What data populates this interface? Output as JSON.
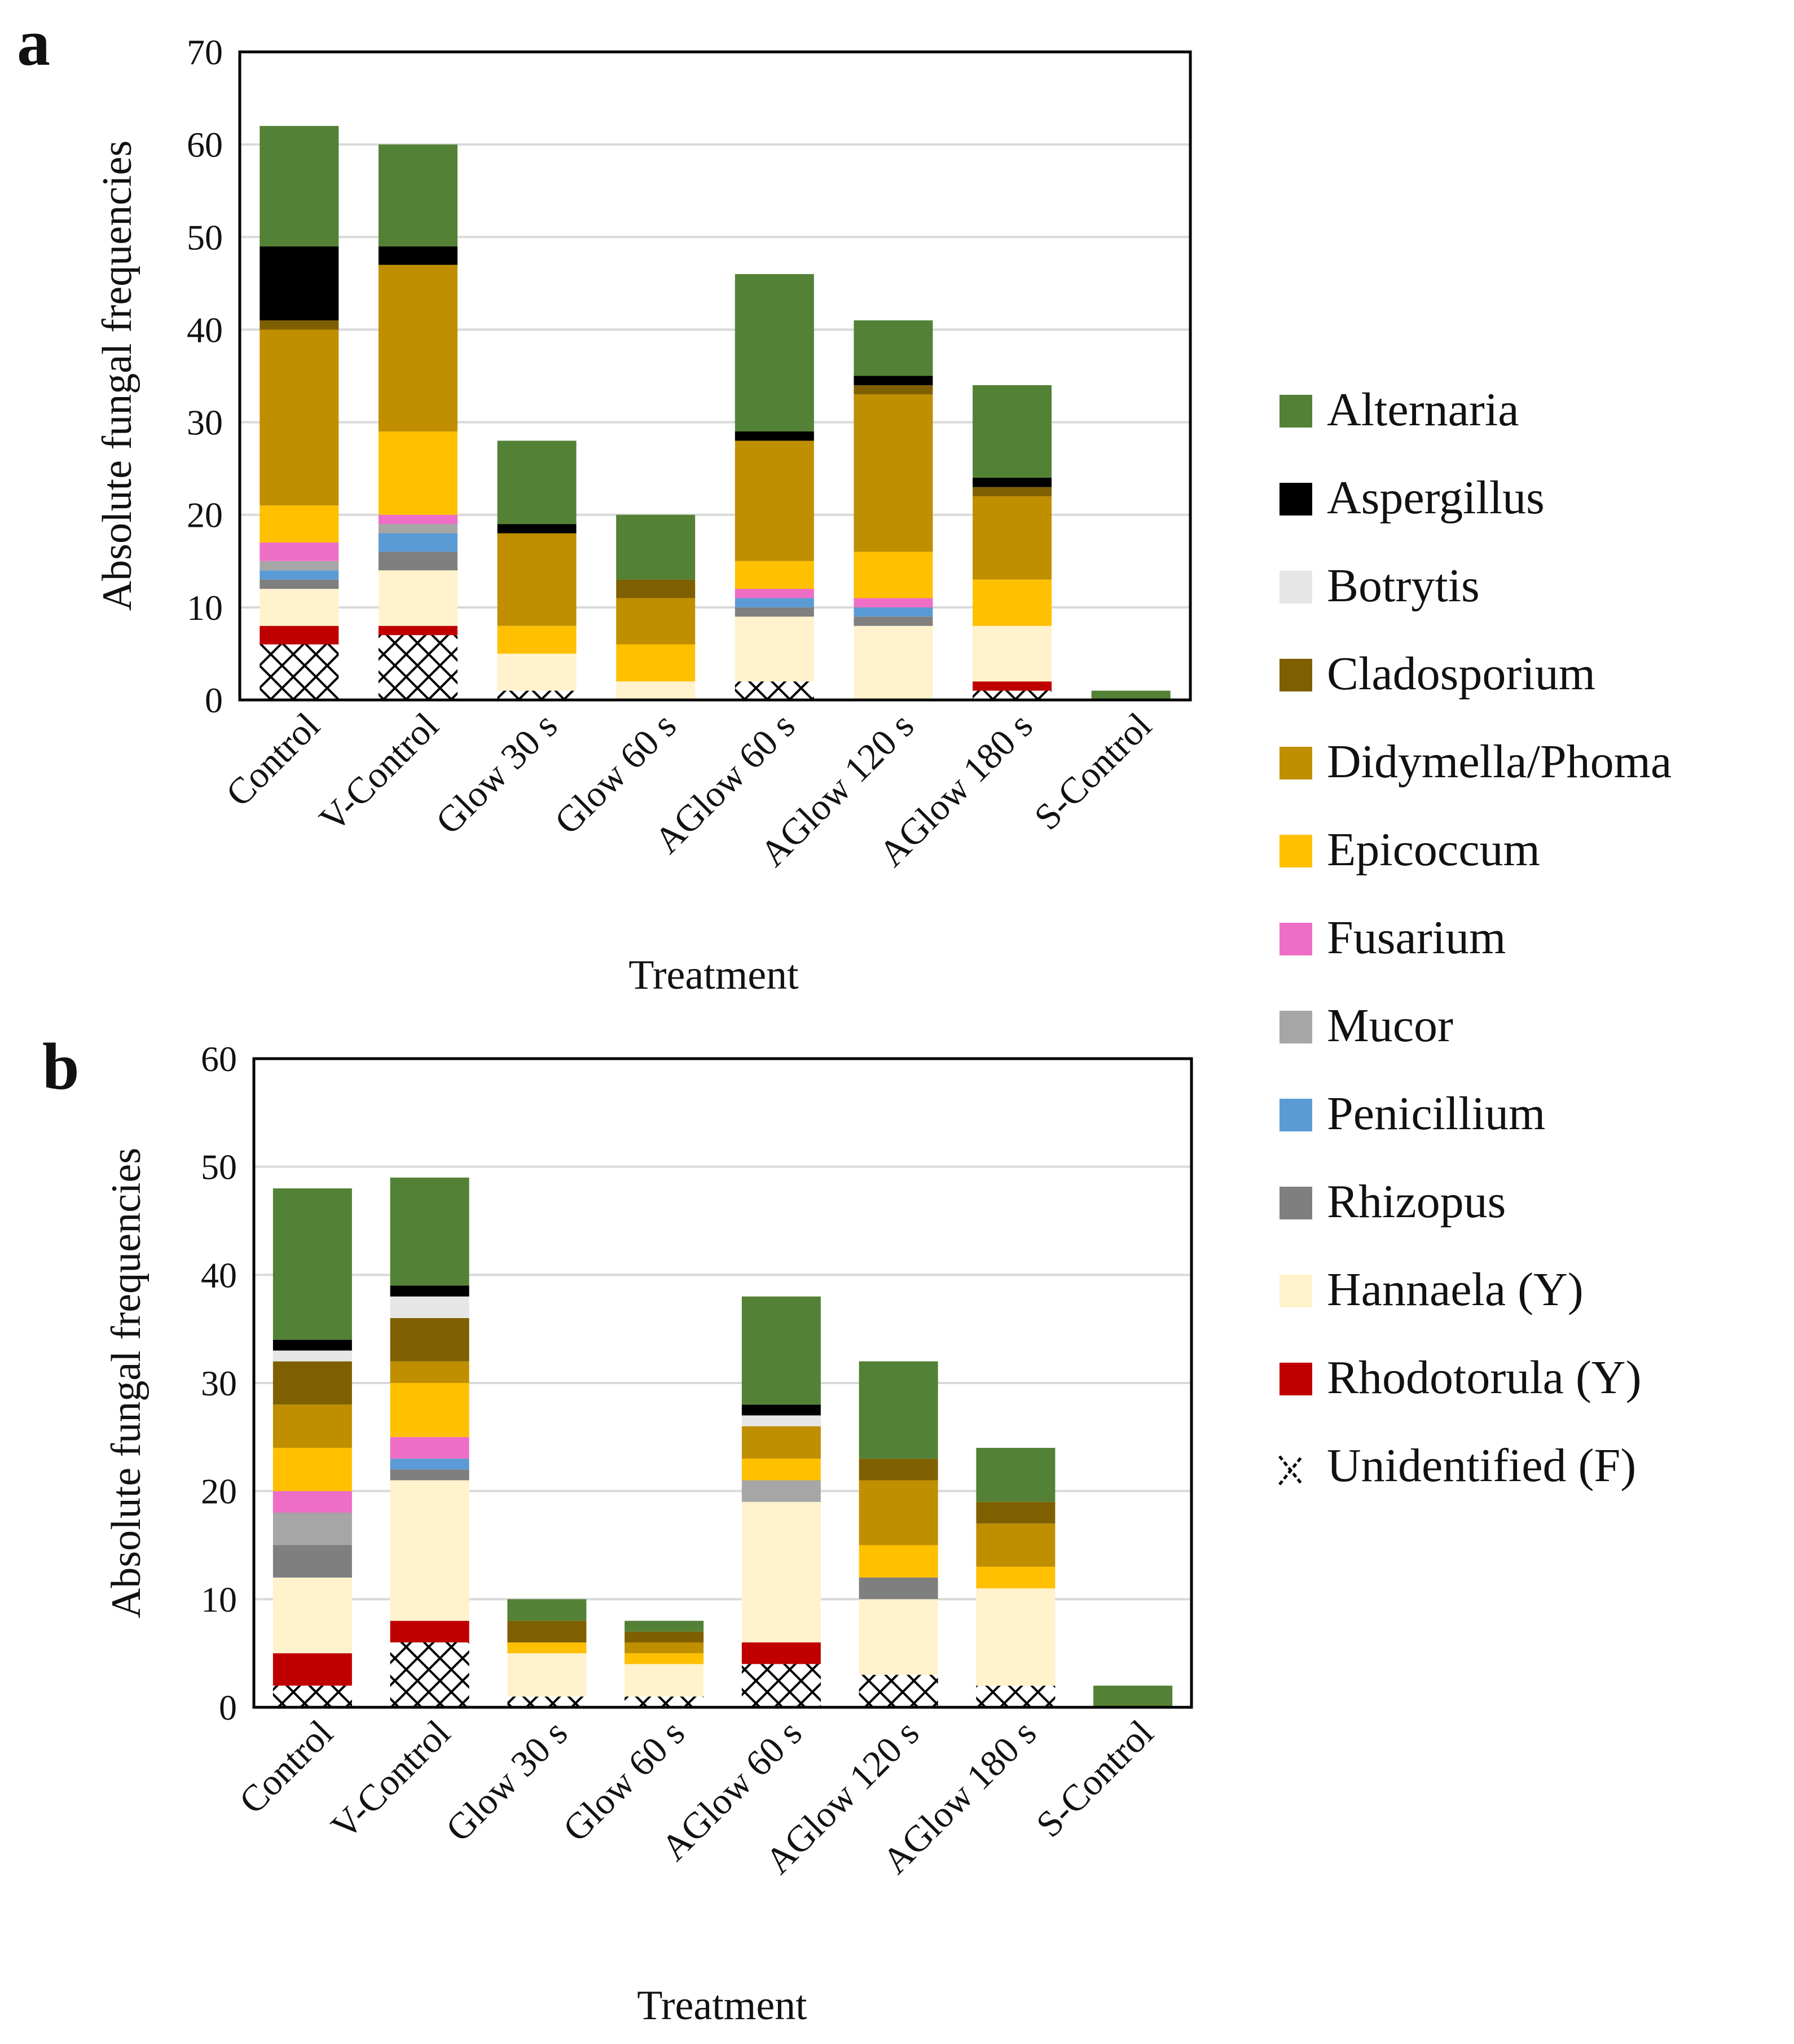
{
  "colors": {
    "Alternaria": "#538135",
    "Aspergillus": "#000000",
    "Botrytis": "#e7e6e6",
    "Cladosporium": "#7f6000",
    "Didymella/Phoma": "#bf8f00",
    "Epicoccum": "#ffc000",
    "Fusarium": "#ee6ec6",
    "Mucor": "#a6a6a6",
    "Penicillium": "#5b9bd5",
    "Rhizopus": "#7f7f7f",
    "Hannaela (Y)": "#fff2cc",
    "Rhodotorula (Y)": "#c00000",
    "Unidentified (F)": "pattern-crosshatch"
  },
  "legend": {
    "items": [
      "Alternaria",
      "Aspergillus",
      "Botrytis",
      "Cladosporium",
      "Didymella/Phoma",
      "Epicoccum",
      "Fusarium",
      "Mucor",
      "Penicillium",
      "Rhizopus",
      "Hannaela (Y)",
      "Rhodotorula (Y)",
      "Unidentified (F)"
    ]
  },
  "chart_data": [
    {
      "type": "bar",
      "stacked": true,
      "panel_label": "a",
      "xlabel": "Treatment",
      "ylabel": "Absolute fungal frequencies",
      "ylim": [
        0,
        70
      ],
      "yticks": [
        0,
        10,
        20,
        30,
        40,
        50,
        60,
        70
      ],
      "grid": true,
      "legend_position": "right",
      "categories": [
        "Control",
        "V-Control",
        "Glow 30 s",
        "Glow 60 s",
        "AGlow 60 s",
        "AGlow 120 s",
        "AGlow 180 s",
        "S-Control"
      ],
      "series": [
        {
          "name": "Unidentified (F)",
          "values": [
            6,
            7,
            1,
            0,
            2,
            0,
            1,
            0
          ]
        },
        {
          "name": "Rhodotorula (Y)",
          "values": [
            2,
            1,
            0,
            0,
            0,
            0,
            1,
            0
          ]
        },
        {
          "name": "Hannaela (Y)",
          "values": [
            4,
            6,
            4,
            2,
            7,
            8,
            6,
            0
          ]
        },
        {
          "name": "Rhizopus",
          "values": [
            1,
            2,
            0,
            0,
            1,
            1,
            0,
            0
          ]
        },
        {
          "name": "Penicillium",
          "values": [
            1,
            2,
            0,
            0,
            1,
            1,
            0,
            0
          ]
        },
        {
          "name": "Mucor",
          "values": [
            1,
            1,
            0,
            0,
            0,
            0,
            0,
            0
          ]
        },
        {
          "name": "Fusarium",
          "values": [
            2,
            1,
            0,
            0,
            1,
            1,
            0,
            0
          ]
        },
        {
          "name": "Epicoccum",
          "values": [
            4,
            9,
            3,
            4,
            3,
            5,
            5,
            0
          ]
        },
        {
          "name": "Didymella/Phoma",
          "values": [
            19,
            18,
            10,
            5,
            13,
            17,
            9,
            0
          ]
        },
        {
          "name": "Cladosporium",
          "values": [
            1,
            0,
            0,
            2,
            0,
            1,
            1,
            0
          ]
        },
        {
          "name": "Botrytis",
          "values": [
            0,
            0,
            0,
            0,
            0,
            0,
            0,
            0
          ]
        },
        {
          "name": "Aspergillus",
          "values": [
            8,
            2,
            1,
            0,
            1,
            1,
            1,
            0
          ]
        },
        {
          "name": "Alternaria",
          "values": [
            13,
            11,
            9,
            7,
            17,
            6,
            10,
            1
          ]
        }
      ]
    },
    {
      "type": "bar",
      "stacked": true,
      "panel_label": "b",
      "xlabel": "Treatment",
      "ylabel": "Absolute fungal frequencies",
      "ylim": [
        0,
        60
      ],
      "yticks": [
        0,
        10,
        20,
        30,
        40,
        50,
        60
      ],
      "grid": true,
      "legend_position": "right",
      "categories": [
        "Control",
        "V-Control",
        "Glow 30 s",
        "Glow 60 s",
        "AGlow 60 s",
        "AGlow 120 s",
        "AGlow 180 s",
        "S-Control"
      ],
      "series": [
        {
          "name": "Unidentified (F)",
          "values": [
            2,
            6,
            1,
            1,
            4,
            3,
            2,
            0
          ]
        },
        {
          "name": "Rhodotorula (Y)",
          "values": [
            3,
            2,
            0,
            0,
            2,
            0,
            0,
            0
          ]
        },
        {
          "name": "Hannaela (Y)",
          "values": [
            7,
            13,
            4,
            3,
            13,
            7,
            9,
            0
          ]
        },
        {
          "name": "Rhizopus",
          "values": [
            3,
            1,
            0,
            0,
            0,
            2,
            0,
            0
          ]
        },
        {
          "name": "Mucor",
          "values": [
            3,
            0,
            0,
            0,
            2,
            0,
            0,
            0
          ]
        },
        {
          "name": "Penicillium",
          "values": [
            0,
            1,
            0,
            0,
            0,
            0,
            0,
            0
          ]
        },
        {
          "name": "Fusarium",
          "values": [
            2,
            2,
            0,
            0,
            0,
            0,
            0,
            0
          ]
        },
        {
          "name": "Epicoccum",
          "values": [
            4,
            5,
            1,
            1,
            2,
            3,
            2,
            0
          ]
        },
        {
          "name": "Didymella/Phoma",
          "values": [
            4,
            2,
            0,
            1,
            3,
            6,
            4,
            0
          ]
        },
        {
          "name": "Cladosporium",
          "values": [
            4,
            4,
            2,
            1,
            0,
            2,
            2,
            0
          ]
        },
        {
          "name": "Botrytis",
          "values": [
            1,
            2,
            0,
            0,
            1,
            0,
            0,
            0
          ]
        },
        {
          "name": "Aspergillus",
          "values": [
            1,
            1,
            0,
            0,
            1,
            0,
            0,
            0
          ]
        },
        {
          "name": "Alternaria",
          "values": [
            14,
            10,
            2,
            1,
            10,
            9,
            5,
            2
          ]
        }
      ]
    }
  ]
}
